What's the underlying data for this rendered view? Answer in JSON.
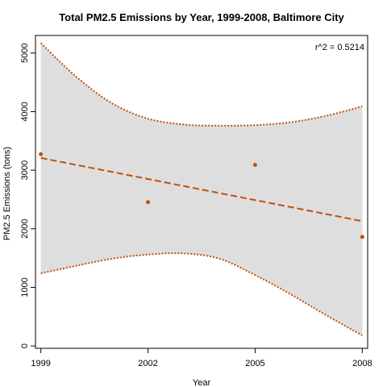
{
  "chart_data": {
    "type": "scatter",
    "title": "Total PM2.5 Emissions by Year, 1999-2008, Baltimore City",
    "xlabel": "Year",
    "ylabel": "PM2.5 Emissions (tons)",
    "annotation": "r^2 = 0.5214",
    "xlim": [
      1998.85,
      2008.15
    ],
    "ylim": [
      -40,
      5300
    ],
    "x_ticks": [
      1999,
      2002,
      2005,
      2008
    ],
    "x_tick_labels": [
      "1999",
      "2002",
      "2005",
      "2008"
    ],
    "y_ticks": [
      0,
      1000,
      2000,
      3000,
      4000,
      5000
    ],
    "y_tick_labels": [
      "0",
      "1000",
      "2000",
      "3000",
      "4000",
      "5000"
    ],
    "points": {
      "x": [
        1999,
        2002,
        2005,
        2008
      ],
      "y": [
        3274,
        2454,
        3091,
        1862
      ]
    },
    "fit_line": {
      "x": [
        1999,
        2008
      ],
      "y": [
        3210,
        2130
      ]
    },
    "prediction_band": {
      "x": [
        1999,
        2000,
        2001,
        2002,
        2003,
        2004,
        2005,
        2006,
        2007,
        2008
      ],
      "upper": [
        5170,
        4590,
        4140,
        3880,
        3780,
        3760,
        3770,
        3820,
        3930,
        4090
      ],
      "lower": [
        1240,
        1370,
        1490,
        1560,
        1580,
        1490,
        1210,
        880,
        520,
        180
      ]
    },
    "colors": {
      "points": "#C0500A",
      "fit_line": "#C0500A",
      "band_fill": "#DEDEDE",
      "band_edge": "#C0500A"
    },
    "grid": false,
    "legend": "none"
  }
}
